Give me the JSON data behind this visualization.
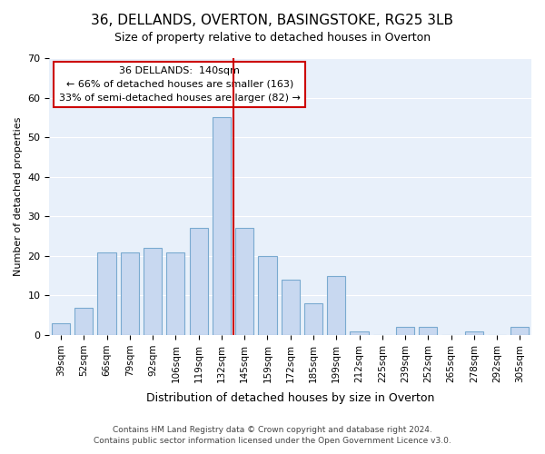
{
  "title": "36, DELLANDS, OVERTON, BASINGSTOKE, RG25 3LB",
  "subtitle": "Size of property relative to detached houses in Overton",
  "xlabel": "Distribution of detached houses by size in Overton",
  "ylabel": "Number of detached properties",
  "categories": [
    "39sqm",
    "52sqm",
    "66sqm",
    "79sqm",
    "92sqm",
    "106sqm",
    "119sqm",
    "132sqm",
    "145sqm",
    "159sqm",
    "172sqm",
    "185sqm",
    "199sqm",
    "212sqm",
    "225sqm",
    "239sqm",
    "252sqm",
    "265sqm",
    "278sqm",
    "292sqm",
    "305sqm"
  ],
  "values": [
    3,
    7,
    21,
    21,
    22,
    21,
    27,
    55,
    27,
    20,
    14,
    8,
    15,
    1,
    0,
    2,
    2,
    0,
    1,
    0,
    2
  ],
  "bar_color": "#c8d8f0",
  "bar_edge_color": "#7aaad0",
  "vline_x": 8,
  "vline_color": "#cc0000",
  "ylim": [
    0,
    70
  ],
  "annotation_title": "36 DELLANDS:  140sqm",
  "annotation_line1": "← 66% of detached houses are smaller (163)",
  "annotation_line2": "33% of semi-detached houses are larger (82) →",
  "annotation_box_edge": "#cc0000",
  "footer_line1": "Contains HM Land Registry data © Crown copyright and database right 2024.",
  "footer_line2": "Contains public sector information licensed under the Open Government Licence v3.0.",
  "background_color": "#ffffff",
  "grid_color": "#ffffff"
}
